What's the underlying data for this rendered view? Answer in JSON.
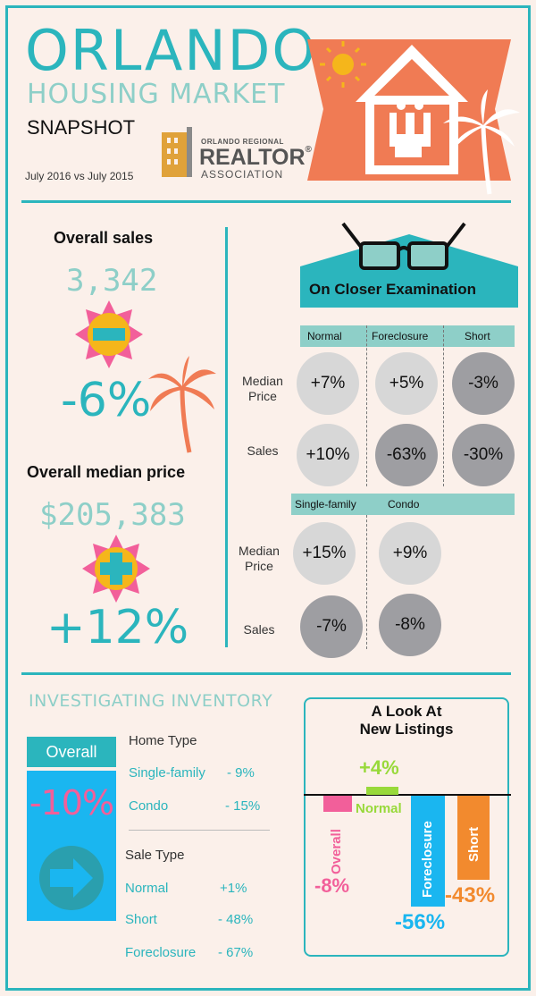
{
  "header": {
    "title": "ORLANDO",
    "subtitle": "HOUSING MARKET",
    "tagline": "SNAPSHOT",
    "date_range": "July 2016 vs July 2015",
    "logo": {
      "line1": "ORLANDO REGIONAL",
      "line2": "REALTOR",
      "line3": "ASSOCIATION",
      "mark": "®"
    }
  },
  "overall": {
    "sales_label": "Overall sales",
    "sales_value": "3,342",
    "sales_change": "-6%",
    "price_label": "Overall median price",
    "price_value": "$205,383",
    "price_change": "+12%"
  },
  "examination": {
    "title": "On Closer Examination",
    "headers1": [
      "Normal",
      "Foreclosure",
      "Short"
    ],
    "rows1": [
      {
        "label_line1": "Median",
        "label_line2": "Price",
        "values": [
          "+7%",
          "+5%",
          "-3%"
        ]
      },
      {
        "label_line1": "Sales",
        "label_line2": "",
        "values": [
          "+10%",
          "-63%",
          "-30%"
        ]
      }
    ],
    "headers2": [
      "Single-family",
      "Condo"
    ],
    "rows2": [
      {
        "label_line1": "Median",
        "label_line2": "Price",
        "values": [
          "+15%",
          "+9%"
        ]
      },
      {
        "label_line1": "Sales",
        "label_line2": "",
        "values": [
          "-7%",
          "-8%"
        ]
      }
    ]
  },
  "inventory": {
    "title": "INVESTIGATING INVENTORY",
    "overall_label": "Overall",
    "overall_value": "-10%",
    "home_type_label": "Home Type",
    "home_types": [
      {
        "name": "Single-family",
        "value": "- 9%"
      },
      {
        "name": "Condo",
        "value": "- 15%"
      }
    ],
    "sale_type_label": "Sale Type",
    "sale_types": [
      {
        "name": "Normal",
        "value": "+1%"
      },
      {
        "name": "Short",
        "value": "- 48%"
      },
      {
        "name": "Foreclosure",
        "value": "- 67%"
      }
    ]
  },
  "listings": {
    "title_line1": "A Look At",
    "title_line2": "New Listings",
    "bars": [
      {
        "name": "Overall",
        "value": -8,
        "label": "-8%",
        "color": "#f25f9a"
      },
      {
        "name": "Normal",
        "value": 4,
        "label": "+4%",
        "color": "#98d93a"
      },
      {
        "name": "Foreclosure",
        "value": -56,
        "label": "-56%",
        "color": "#1ab6f0"
      },
      {
        "name": "Short",
        "value": -43,
        "label": "-43%",
        "color": "#f28a2e"
      }
    ]
  },
  "colors": {
    "accent": "#2bb5bd",
    "mint": "#8ecfc8",
    "pink": "#f25f9a",
    "orange": "#f28a2e",
    "green": "#98d93a",
    "blue": "#1ab6f0"
  }
}
